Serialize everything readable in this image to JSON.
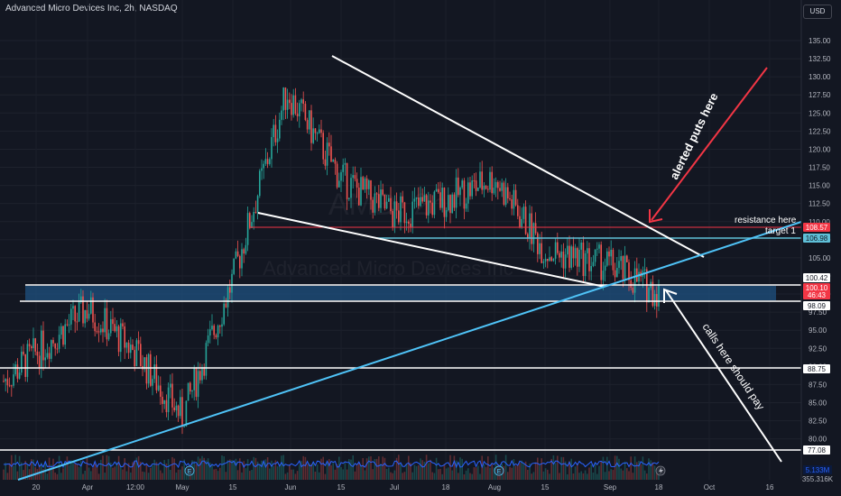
{
  "header": {
    "symbol_line": "Advanced Micro Devices Inc, 2h, NASDAQ",
    "currency": "USD"
  },
  "watermark": {
    "ticker": "AMD, 2h",
    "name": "Advanced Micro Devices Inc"
  },
  "chart_data": {
    "type": "candlestick",
    "y_axis": {
      "ticks": [
        135.0,
        132.5,
        130.0,
        127.5,
        125.0,
        122.5,
        120.0,
        117.5,
        115.0,
        112.5,
        110.0,
        107.5,
        105.0,
        102.5,
        100.0,
        97.5,
        95.0,
        92.5,
        90.0,
        87.5,
        85.0,
        82.5,
        80.0
      ],
      "ylim": [
        75.5,
        137
      ]
    },
    "x_axis": {
      "labels": [
        "20",
        "Apr",
        "12:00",
        "May",
        "15",
        "Jun",
        "15",
        "Jul",
        "18",
        "Aug",
        "15",
        "Sep",
        "18",
        "Oct",
        "16"
      ]
    },
    "price_labels": [
      {
        "value": "108.57",
        "color": "#f23645"
      },
      {
        "value": "106.98",
        "color": "#5fc0d8"
      },
      {
        "value": "100.42",
        "color": "#ffffff"
      },
      {
        "value": "100.10",
        "color": "#f23645"
      },
      {
        "value": "46:43",
        "color": "#f23645"
      },
      {
        "value": "98.09",
        "color": "#ffffff"
      },
      {
        "value": "88.75",
        "color": "#ffffff"
      },
      {
        "value": "77.08",
        "color": "#ffffff"
      }
    ],
    "volume_labels": [
      {
        "value": "5.133M",
        "color": "#2962ff"
      },
      {
        "value": "355.316K",
        "color": "#b2b5be"
      }
    ],
    "horizontal_lines": [
      108.57,
      106.98,
      100.42,
      98.09,
      88.75,
      77.08
    ],
    "annotations": [
      "resistance here",
      "target 1",
      "alerted puts here",
      "calls here should pay"
    ],
    "colors": {
      "up": "#26a69a",
      "down": "#ef5350",
      "trendline_blue": "#4fc3f7",
      "resistance_red": "#f23645",
      "zone_blue": "#1e4d7a"
    },
    "price_path": [
      [
        "20",
        88
      ],
      [
        "Apr",
        98
      ],
      [
        "12:00",
        92
      ],
      [
        "May",
        83
      ],
      [
        "15",
        102
      ],
      [
        "Jun",
        128
      ],
      [
        "15",
        116
      ],
      [
        "Jul",
        111
      ],
      [
        "18",
        113
      ],
      [
        "Aug",
        116
      ],
      [
        "15",
        106
      ],
      [
        "Sep",
        104
      ],
      [
        "18",
        100.1
      ]
    ]
  }
}
